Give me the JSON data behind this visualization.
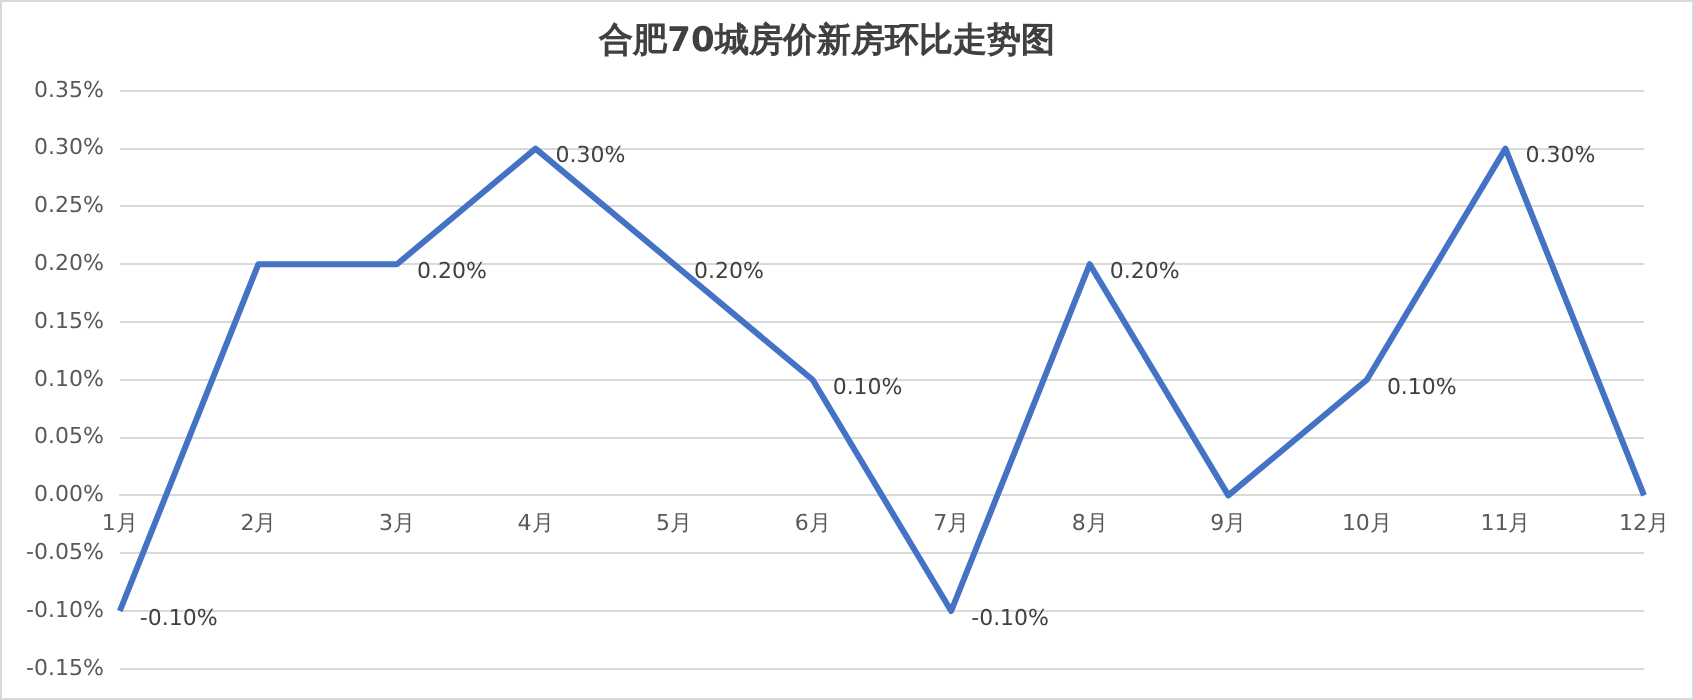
{
  "chart_data": {
    "type": "line",
    "title": "合肥70城房价新房环比走势图",
    "categories": [
      "1月",
      "2月",
      "3月",
      "4月",
      "5月",
      "6月",
      "7月",
      "8月",
      "9月",
      "10月",
      "11月",
      "12月"
    ],
    "series": [
      {
        "color": "#4472c4",
        "values": [
          -0.1,
          0.2,
          0.2,
          0.3,
          0.2,
          0.1,
          -0.1,
          0.2,
          0,
          0.1,
          0.3,
          0
        ],
        "value_labels": [
          "-0.10%",
          null,
          "0.20%",
          "0.30%",
          "0.20%",
          "0.10%",
          "-0.10%",
          "0.20%",
          null,
          "0.10%",
          "0.30%",
          null
        ]
      }
    ],
    "ylim": [
      -0.15,
      0.35
    ],
    "yticks": [
      {
        "value": -0.15,
        "label": "-0.15%"
      },
      {
        "value": -0.1,
        "label": "-0.10%"
      },
      {
        "value": -0.05,
        "label": "-0.05%"
      },
      {
        "value": 0,
        "label": "0.00%"
      },
      {
        "value": 0.05,
        "label": "0.05%"
      },
      {
        "value": 0.1,
        "label": "0.10%"
      },
      {
        "value": 0.15,
        "label": "0.15%"
      },
      {
        "value": 0.2,
        "label": "0.20%"
      },
      {
        "value": 0.25,
        "label": "0.25%"
      },
      {
        "value": 0.3,
        "label": "0.30%"
      },
      {
        "value": 0.35,
        "label": "0.35%"
      }
    ],
    "grid": "y",
    "legend": false,
    "marker": "none",
    "line_style": "solid"
  }
}
